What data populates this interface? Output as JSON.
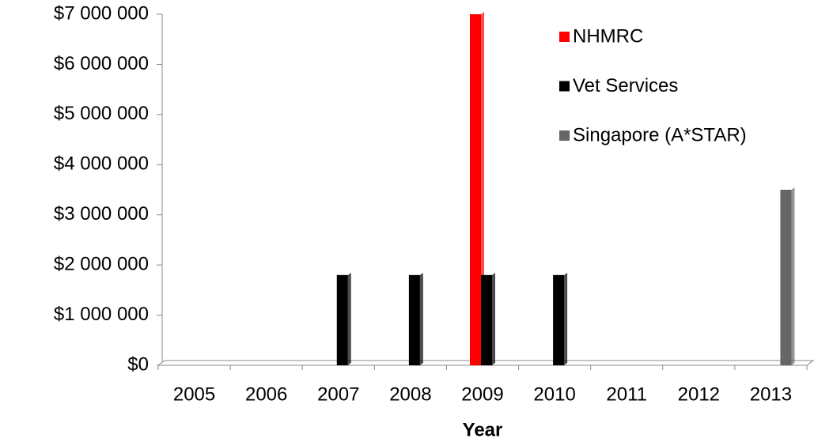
{
  "chart_data": {
    "type": "bar",
    "x_label": "Year",
    "categories": [
      "2005",
      "2006",
      "2007",
      "2008",
      "2009",
      "2010",
      "2011",
      "2012",
      "2013"
    ],
    "series": [
      {
        "name": "NHMRC",
        "color": "#ff0000",
        "values": [
          0,
          0,
          0,
          0,
          7000000,
          0,
          0,
          0,
          0
        ]
      },
      {
        "name": "Vet Services",
        "color": "#000000",
        "values": [
          0,
          0,
          1800000,
          1800000,
          1800000,
          1800000,
          0,
          0,
          0
        ]
      },
      {
        "name": "Singapore (A*STAR)",
        "color": "#666666",
        "values": [
          0,
          0,
          0,
          0,
          0,
          0,
          0,
          0,
          3500000
        ]
      }
    ],
    "ylim": [
      0,
      7000000
    ],
    "yticks": [
      {
        "value": 0,
        "label": "$0"
      },
      {
        "value": 1000000,
        "label": "$1 000 000"
      },
      {
        "value": 2000000,
        "label": "$2 000 000"
      },
      {
        "value": 3000000,
        "label": "$3 000 000"
      },
      {
        "value": 4000000,
        "label": "$4 000 000"
      },
      {
        "value": 5000000,
        "label": "$5 000 000"
      },
      {
        "value": 6000000,
        "label": "$6 000 000"
      },
      {
        "value": 7000000,
        "label": "$7 000 000"
      }
    ],
    "legend": "top-right"
  }
}
